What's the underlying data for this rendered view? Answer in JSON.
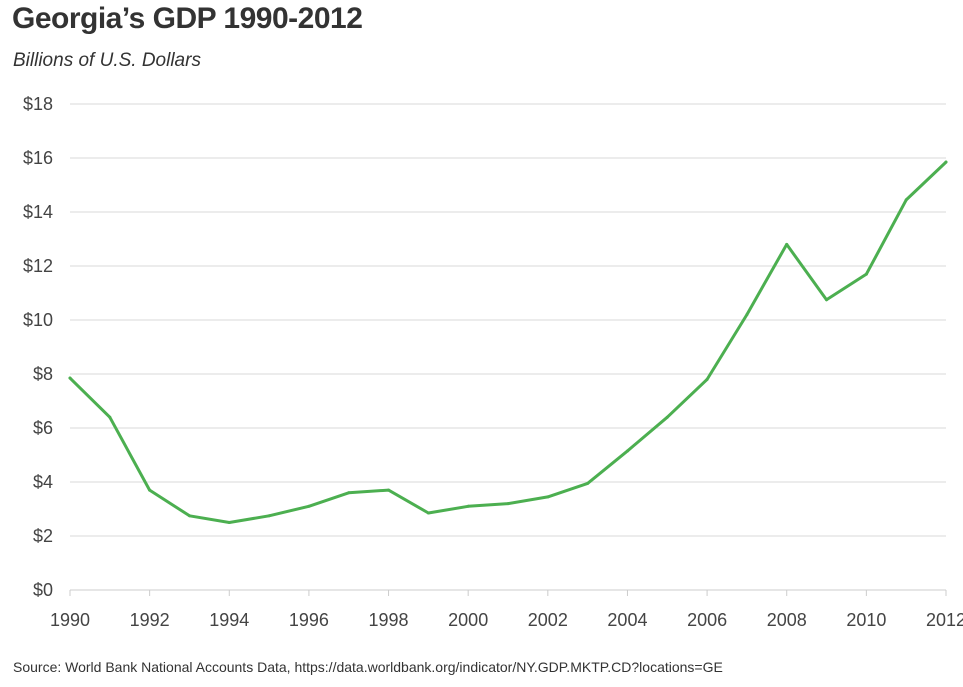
{
  "title": "Georgia’s GDP 1990-2012",
  "subtitle": "Billions of U.S. Dollars",
  "source": "Source: World Bank National Accounts Data, https://data.worldbank.org/indicator/NY.GDP.MKTP.CD?locations=GE",
  "colors": {
    "line": "#4caf50",
    "grid": "#d9d9d9",
    "axis": "#cccccc"
  },
  "chart_data": {
    "type": "line",
    "title": "Georgia’s GDP 1990-2012",
    "subtitle": "Billions of U.S. Dollars",
    "xlabel": "",
    "ylabel": "",
    "x": [
      1990,
      1991,
      1992,
      1993,
      1994,
      1995,
      1996,
      1997,
      1998,
      1999,
      2000,
      2001,
      2002,
      2003,
      2004,
      2005,
      2006,
      2007,
      2008,
      2009,
      2010,
      2011,
      2012
    ],
    "series": [
      {
        "values": [
          7.85,
          6.4,
          3.7,
          2.75,
          2.5,
          2.75,
          3.1,
          3.6,
          3.7,
          2.85,
          3.1,
          3.2,
          3.45,
          3.95,
          5.15,
          6.4,
          7.8,
          10.2,
          12.8,
          10.75,
          11.7,
          14.45,
          15.85
        ]
      }
    ],
    "xlim": [
      1990,
      2012
    ],
    "ylim": [
      0,
      18
    ],
    "x_ticks": [
      1990,
      1992,
      1994,
      1996,
      1998,
      2000,
      2002,
      2004,
      2006,
      2008,
      2010,
      2012
    ],
    "y_ticks": [
      0,
      2,
      4,
      6,
      8,
      10,
      12,
      14,
      16,
      18
    ],
    "x_tick_labels": [
      "1990",
      "1992",
      "1994",
      "1996",
      "1998",
      "2000",
      "2002",
      "2004",
      "2006",
      "2008",
      "2010",
      "2012"
    ],
    "y_tick_labels": [
      "$0",
      "$2",
      "$4",
      "$6",
      "$8",
      "$10",
      "$12",
      "$14",
      "$16",
      "$18"
    ],
    "grid": true,
    "legend": "none"
  }
}
